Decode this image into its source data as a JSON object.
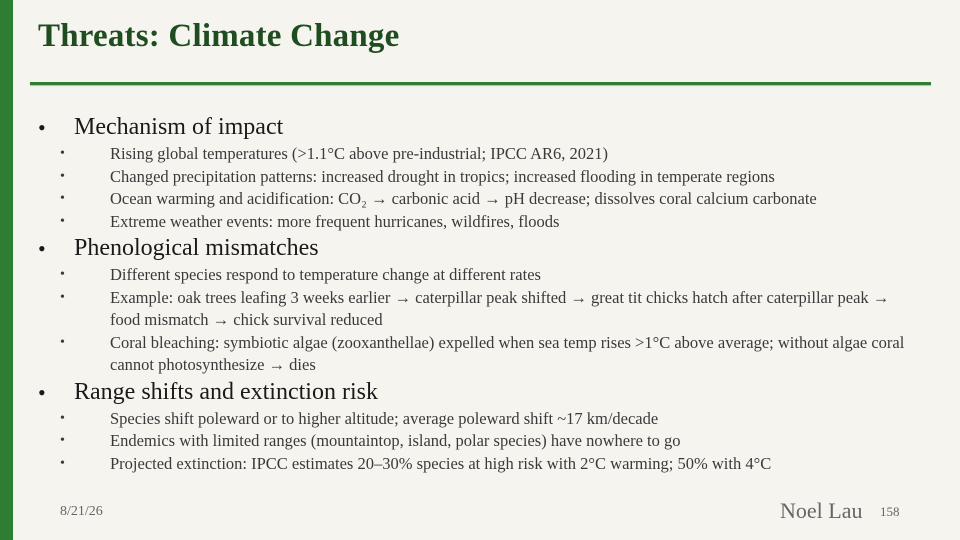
{
  "slide": {
    "title": "Threats: Climate Change",
    "date": "8/21/26",
    "author": "Noel Lau",
    "page_number": "158"
  },
  "sections": [
    {
      "heading": "Mechanism of impact",
      "items": [
        "Rising global temperatures (>1.1°C above pre-industrial; IPCC AR6, 2021)",
        "Changed precipitation patterns: increased drought in tropics; increased flooding in temperate regions",
        "Ocean warming and acidification: CO₂ → carbonic acid → pH decrease; dissolves coral calcium carbonate",
        "Extreme weather events: more frequent hurricanes, wildfires, floods"
      ]
    },
    {
      "heading": "Phenological mismatches",
      "items": [
        "Different species respond to temperature change at different rates",
        "Example: oak trees leafing 3 weeks earlier → caterpillar peak shifted → great tit chicks hatch after caterpillar peak → food mismatch → chick survival reduced",
        "Coral bleaching: symbiotic algae (zooxanthellae) expelled when sea temp rises >1°C above average; without algae coral cannot photosynthesize → dies"
      ]
    },
    {
      "heading": "Range shifts and extinction risk",
      "items": [
        "Species shift poleward or to higher altitude; average poleward shift ~17 km/decade",
        "Endemics with limited ranges (mountaintop, island, polar species) have nowhere to go",
        "Projected extinction: IPCC estimates 20–30% species at high risk with 2°C warming; 50% with 4°C"
      ]
    }
  ],
  "colors": {
    "accent": "#2e7d32",
    "title": "#1f4d20",
    "background": "#f6f4ef"
  }
}
